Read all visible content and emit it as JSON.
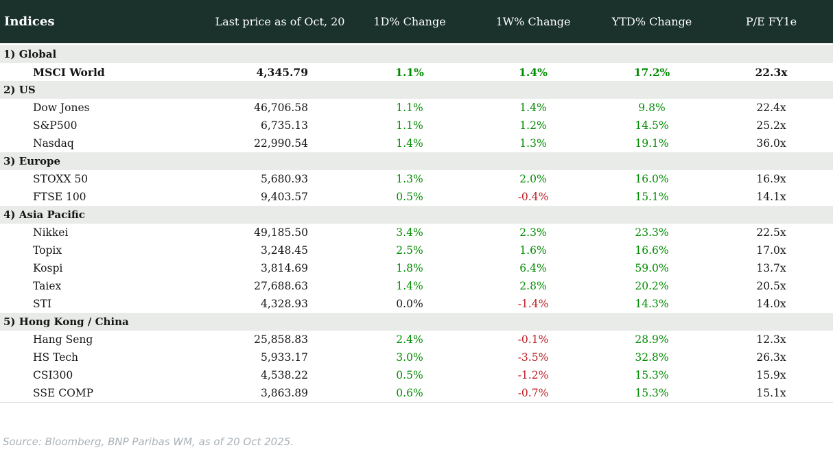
{
  "chart_data": {
    "type": "table",
    "title": "Indices",
    "columns": [
      "Last price as of Oct, 20",
      "1D% Change",
      "1W% Change",
      "YTD% Change",
      "P/E FY1e"
    ],
    "sections": [
      {
        "label": "1) Global",
        "rows": [
          {
            "name": "MSCI World",
            "bold": true,
            "last_price": "4,345.79",
            "d1": "1.1%",
            "w1": "1.4%",
            "ytd": "17.2%",
            "pe": "22.3x"
          }
        ]
      },
      {
        "label": "2) US",
        "rows": [
          {
            "name": "Dow Jones",
            "bold": false,
            "last_price": "46,706.58",
            "d1": "1.1%",
            "w1": "1.4%",
            "ytd": "9.8%",
            "pe": "22.4x"
          },
          {
            "name": "S&P500",
            "bold": false,
            "last_price": "6,735.13",
            "d1": "1.1%",
            "w1": "1.2%",
            "ytd": "14.5%",
            "pe": "25.2x"
          },
          {
            "name": "Nasdaq",
            "bold": false,
            "last_price": "22,990.54",
            "d1": "1.4%",
            "w1": "1.3%",
            "ytd": "19.1%",
            "pe": "36.0x"
          }
        ]
      },
      {
        "label": "3) Europe",
        "rows": [
          {
            "name": "STOXX 50",
            "bold": false,
            "last_price": "5,680.93",
            "d1": "1.3%",
            "w1": "2.0%",
            "ytd": "16.0%",
            "pe": "16.9x"
          },
          {
            "name": "FTSE 100",
            "bold": false,
            "last_price": "9,403.57",
            "d1": "0.5%",
            "w1": "-0.4%",
            "ytd": "15.1%",
            "pe": "14.1x"
          }
        ]
      },
      {
        "label": "4) Asia Pacific",
        "rows": [
          {
            "name": "Nikkei",
            "bold": false,
            "last_price": "49,185.50",
            "d1": "3.4%",
            "w1": "2.3%",
            "ytd": "23.3%",
            "pe": "22.5x"
          },
          {
            "name": "Topix",
            "bold": false,
            "last_price": "3,248.45",
            "d1": "2.5%",
            "w1": "1.6%",
            "ytd": "16.6%",
            "pe": "17.0x"
          },
          {
            "name": "Kospi",
            "bold": false,
            "last_price": "3,814.69",
            "d1": "1.8%",
            "w1": "6.4%",
            "ytd": "59.0%",
            "pe": "13.7x"
          },
          {
            "name": "Taiex",
            "bold": false,
            "last_price": "27,688.63",
            "d1": "1.4%",
            "w1": "2.8%",
            "ytd": "20.2%",
            "pe": "20.5x"
          },
          {
            "name": "STI",
            "bold": false,
            "last_price": "4,328.93",
            "d1": "0.0%",
            "w1": "-1.4%",
            "ytd": "14.3%",
            "pe": "14.0x"
          }
        ]
      },
      {
        "label": "5) Hong Kong / China",
        "rows": [
          {
            "name": "Hang Seng",
            "bold": false,
            "last_price": "25,858.83",
            "d1": "2.4%",
            "w1": "-0.1%",
            "ytd": "28.9%",
            "pe": "12.3x"
          },
          {
            "name": "HS Tech",
            "bold": false,
            "last_price": "5,933.17",
            "d1": "3.0%",
            "w1": "-3.5%",
            "ytd": "32.8%",
            "pe": "26.3x"
          },
          {
            "name": "CSI300",
            "bold": false,
            "last_price": "4,538.22",
            "d1": "0.5%",
            "w1": "-1.2%",
            "ytd": "15.3%",
            "pe": "15.9x"
          },
          {
            "name": "SSE COMP",
            "bold": false,
            "last_price": "3,863.89",
            "d1": "0.6%",
            "w1": "-0.7%",
            "ytd": "15.3%",
            "pe": "15.1x"
          }
        ]
      }
    ]
  },
  "footer": {
    "source": "Source: Bloomberg, BNP Paribas WM, as of 20 Oct 2025."
  },
  "colors": {
    "header_bg": "#1b322c",
    "section_bg": "#e8ebe7",
    "positive": "#008c00",
    "negative": "#bf1d22",
    "footer_text": "#a9b1b7"
  }
}
